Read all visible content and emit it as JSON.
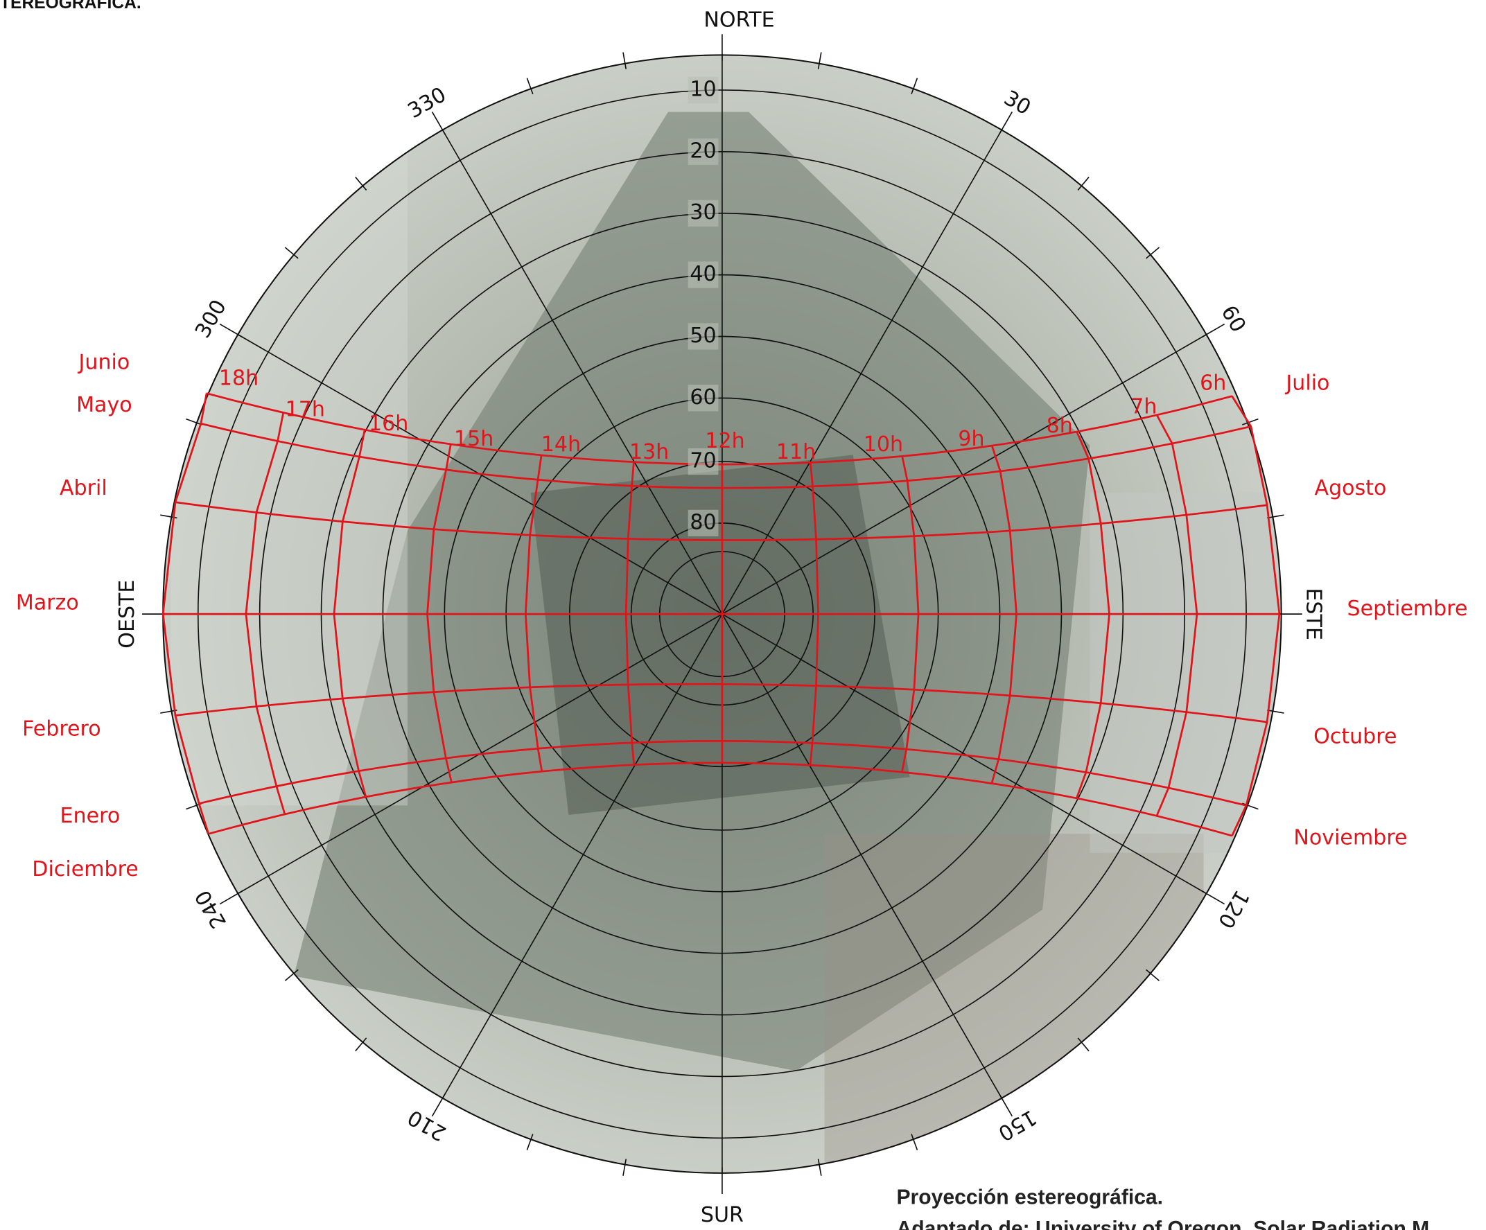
{
  "header": {
    "title": "TEREOGRÁFICA."
  },
  "compass": {
    "north": "NORTE",
    "south": "SUR",
    "east": "ESTE",
    "west": "OESTE"
  },
  "azimuth_labels": [
    "30",
    "60",
    "120",
    "150",
    "210",
    "240",
    "300",
    "330"
  ],
  "altitude_labels": [
    "10",
    "20",
    "30",
    "40",
    "50",
    "60",
    "70",
    "80"
  ],
  "hour_labels": [
    "18h",
    "17h",
    "16h",
    "15h",
    "14h",
    "13h",
    "12h",
    "11h",
    "10h",
    "9h",
    "8h",
    "7h",
    "6h"
  ],
  "months_left": [
    "Junio",
    "Mayo",
    "Abril",
    "Marzo",
    "Febrero",
    "Enero",
    "Diciembre"
  ],
  "months_right": [
    "Julio",
    "Agosto",
    "Septiembre",
    "Octubre",
    "Noviembre"
  ],
  "caption": {
    "line1": "Proyección estereográfica.",
    "line2": "Adaptado de: University of Oregon, Solar Radiation M"
  }
}
